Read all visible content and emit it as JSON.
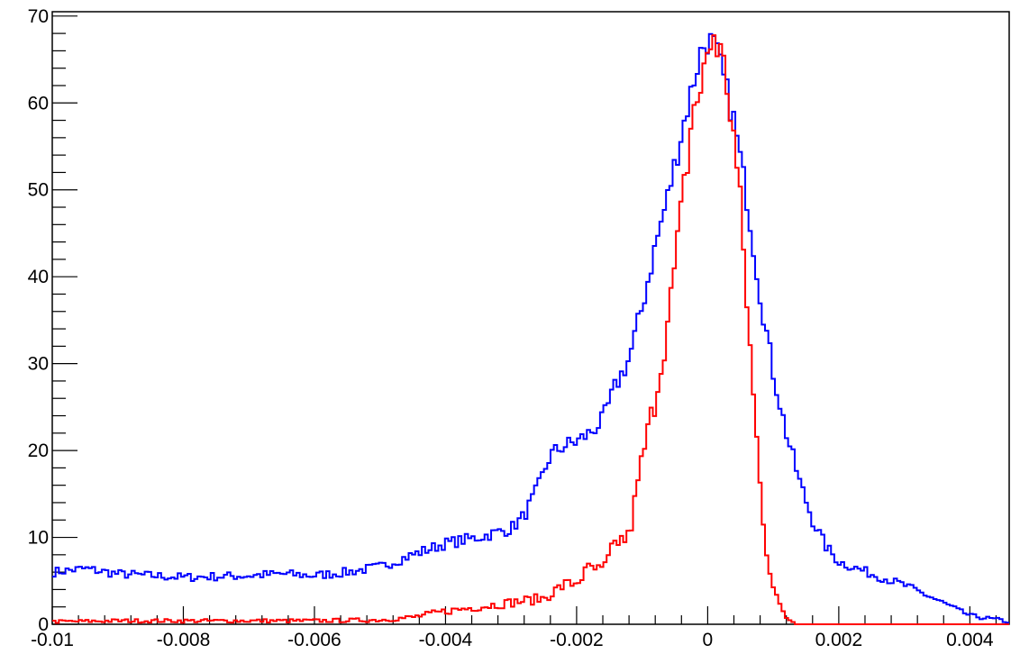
{
  "chart_data": {
    "type": "line",
    "style": "step-histogram",
    "title": "",
    "xlabel": "",
    "ylabel": "",
    "xlim": [
      -0.01,
      0.0046
    ],
    "ylim": [
      0,
      70.5
    ],
    "grid": false,
    "legend": "none",
    "x_ticks": [
      -0.01,
      -0.008,
      -0.006,
      -0.004,
      -0.002,
      0,
      0.002,
      0.004
    ],
    "x_tick_labels": [
      "-0.01",
      "-0.008",
      "-0.006",
      "-0.004",
      "-0.002",
      "0",
      "0.002",
      "0.004"
    ],
    "y_ticks": [
      0,
      10,
      20,
      30,
      40,
      50,
      60,
      70
    ],
    "y_tick_labels": [
      "0",
      "10",
      "20",
      "30",
      "40",
      "50",
      "60",
      "70"
    ],
    "series": [
      {
        "color": "#0000ff",
        "x": [
          -0.01,
          -0.0095,
          -0.009,
          -0.0085,
          -0.008,
          -0.0075,
          -0.007,
          -0.0065,
          -0.006,
          -0.0055,
          -0.005,
          -0.0045,
          -0.004,
          -0.0035,
          -0.003,
          -0.0028,
          -0.0026,
          -0.0024,
          -0.0022,
          -0.002,
          -0.0018,
          -0.0016,
          -0.0014,
          -0.0012,
          -0.001,
          -0.0008,
          -0.0006,
          -0.0004,
          -0.0002,
          -0.0001,
          0,
          0.0001,
          0.0002,
          0.0004,
          0.0006,
          0.0008,
          0.001,
          0.0012,
          0.0014,
          0.0016,
          0.0018,
          0.002,
          0.0025,
          0.003,
          0.0035,
          0.004,
          0.0046
        ],
        "values": [
          6,
          6.4,
          5.8,
          5.6,
          5.4,
          5.5,
          5.6,
          5.8,
          5.6,
          6.0,
          6.6,
          8.0,
          9.3,
          10.0,
          11.0,
          12.5,
          15.5,
          19.5,
          20.5,
          21.0,
          22.0,
          23.5,
          27.5,
          30.5,
          36.5,
          43.5,
          49.5,
          56.5,
          63.0,
          66.0,
          67.3,
          66.5,
          64.0,
          58.0,
          49.0,
          38.0,
          29.0,
          22.0,
          16.5,
          12.0,
          9.0,
          7.2,
          5.8,
          4.5,
          2.8,
          1.0,
          0.3
        ]
      },
      {
        "color": "#ff0000",
        "x": [
          -0.01,
          -0.009,
          -0.008,
          -0.007,
          -0.006,
          -0.005,
          -0.0045,
          -0.004,
          -0.0035,
          -0.003,
          -0.0025,
          -0.0022,
          -0.002,
          -0.0018,
          -0.0016,
          -0.0014,
          -0.0012,
          -0.001,
          -0.0008,
          -0.0006,
          -0.0005,
          -0.0004,
          -0.0003,
          -0.0002,
          -0.0001,
          0,
          0.0001,
          0.0002,
          0.0003,
          0.0004,
          0.0005,
          0.0006,
          0.0007,
          0.0008,
          0.0009,
          0.001,
          0.0011,
          0.0012,
          0.0013,
          0.0014,
          0.0016,
          0.0018,
          0.0046
        ],
        "values": [
          0.3,
          0.4,
          0.4,
          0.4,
          0.4,
          0.5,
          0.8,
          1.5,
          2.0,
          2.5,
          3.0,
          4.5,
          4.8,
          6.5,
          6.0,
          9.5,
          10.0,
          19.0,
          26.0,
          35.0,
          41.0,
          47.5,
          54.0,
          60.5,
          61.0,
          66.0,
          67.9,
          65.5,
          62.0,
          56.0,
          48.0,
          37.0,
          26.0,
          16.0,
          8.5,
          4.5,
          2.0,
          0.8,
          0.3,
          0.1,
          0,
          0,
          0
        ]
      }
    ]
  }
}
